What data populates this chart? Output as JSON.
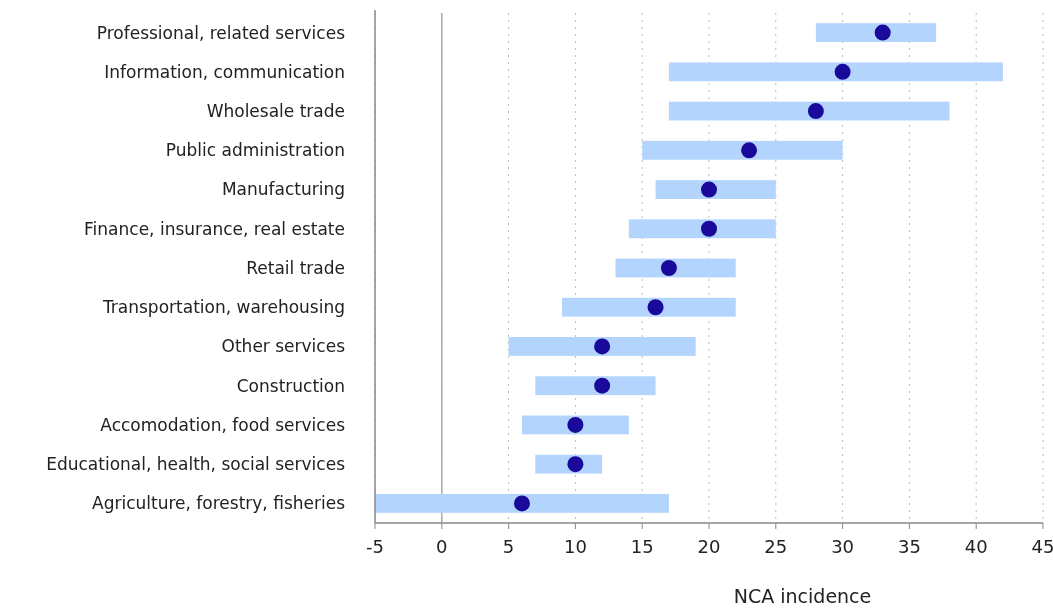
{
  "chart_data": {
    "type": "bar",
    "orientation": "horizontal",
    "xlabel": "NCA incidence",
    "categories": [
      "Professional, related services",
      "Information, communication",
      "Wholesale trade",
      "Public administration",
      "Manufacturing",
      "Finance, insurance, real estate",
      "Retail trade",
      "Transportation, warehousing",
      "Other services",
      "Construction",
      "Accomodation, food services",
      "Educational, health, social services",
      "Agriculture, forestry, fisheries"
    ],
    "series": [
      {
        "type": "bar",
        "color": "#b3d4fc",
        "base": [
          28,
          17,
          17,
          15,
          16,
          14,
          13,
          9,
          5,
          7,
          6,
          7,
          -5
        ],
        "values": [
          9,
          25,
          21,
          15,
          9,
          11,
          9,
          13,
          14,
          9,
          8,
          5,
          22
        ]
      },
      {
        "type": "scatter",
        "color": "#1a0a9c",
        "values": [
          33,
          30,
          28,
          23,
          20,
          20,
          17,
          16,
          12,
          12,
          10,
          10,
          6
        ]
      }
    ],
    "xlim": [
      -5,
      45
    ],
    "xticks": [
      -5,
      0,
      5,
      10,
      15,
      20,
      25,
      30,
      35,
      40,
      45
    ],
    "grid": "x",
    "marker": "circle",
    "ref_lines": [
      {
        "axis": "x",
        "value": 0,
        "color": "#aaaaaa"
      }
    ]
  }
}
